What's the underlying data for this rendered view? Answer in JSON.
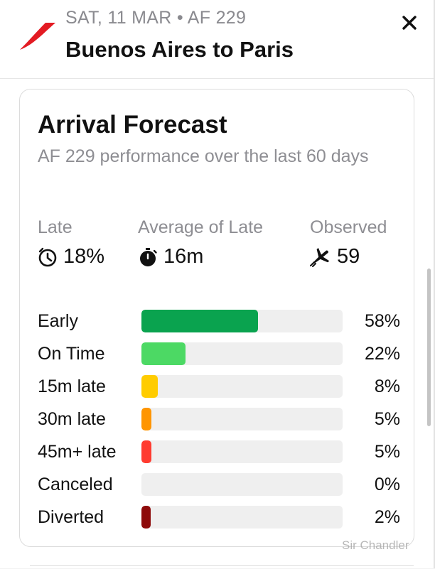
{
  "header": {
    "flight_info": "SAT, 11 MAR • AF 229",
    "route": "Buenos Aires to Paris",
    "logo_icon": "air-france-logo",
    "close_icon": "close-icon"
  },
  "card": {
    "title": "Arrival Forecast",
    "subtitle": "AF 229 performance over the last 60 days",
    "stats": [
      {
        "label": "Late",
        "value": "18%",
        "icon": "clock-late-icon"
      },
      {
        "label": "Average of Late",
        "value": "16m",
        "icon": "stopwatch-icon"
      },
      {
        "label": "Observed",
        "value": "59",
        "icon": "airplane-icon"
      }
    ],
    "rows": [
      {
        "label": "Early",
        "percent": "58%",
        "value": 58,
        "color": "#0aa34f"
      },
      {
        "label": "On Time",
        "percent": "22%",
        "value": 22,
        "color": "#4cd964"
      },
      {
        "label": "15m late",
        "percent": "8%",
        "value": 8,
        "color": "#ffcc00"
      },
      {
        "label": "30m late",
        "percent": "5%",
        "value": 5,
        "color": "#ff9500"
      },
      {
        "label": "45m+ late",
        "percent": "5%",
        "value": 5,
        "color": "#ff3b30"
      },
      {
        "label": "Canceled",
        "percent": "0%",
        "value": 0,
        "color": "#efefef"
      },
      {
        "label": "Diverted",
        "percent": "2%",
        "value": 2,
        "color": "#8e0a0a"
      }
    ]
  },
  "watermark": "Sir Chandler"
}
